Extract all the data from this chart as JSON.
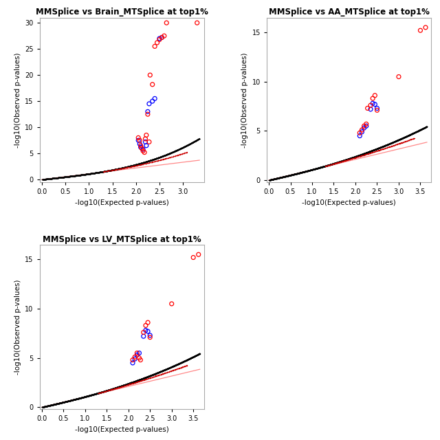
{
  "plots": [
    {
      "title": "MMSplice vs Brain_MTSplice at top1%",
      "xlim": [
        -0.05,
        3.45
      ],
      "ylim": [
        -0.5,
        31
      ],
      "xticks": [
        0.0,
        0.5,
        1.0,
        1.5,
        2.0,
        2.5,
        3.0
      ],
      "yticks": [
        0,
        5,
        10,
        15,
        20,
        25,
        30
      ],
      "curve_xmax": 3.35,
      "curve_ymax": 18.5,
      "curve_power": 3.2,
      "curve_scale": 4.5,
      "n_main": 8000,
      "diag_x0": 0.0,
      "diag_x1": 3.35,
      "diag_y0": 0.0,
      "diag_y1": 3.7,
      "red_circles": [
        [
          2.05,
          8.0
        ],
        [
          2.08,
          7.5
        ],
        [
          2.1,
          6.5
        ],
        [
          2.12,
          6.0
        ],
        [
          2.15,
          5.5
        ],
        [
          2.18,
          5.2
        ],
        [
          2.2,
          7.8
        ],
        [
          2.22,
          8.5
        ],
        [
          2.25,
          12.5
        ],
        [
          2.28,
          7.2
        ],
        [
          2.3,
          20.0
        ],
        [
          2.35,
          18.2
        ],
        [
          2.4,
          25.5
        ],
        [
          2.45,
          26.2
        ],
        [
          2.5,
          26.8
        ],
        [
          2.55,
          27.2
        ],
        [
          2.6,
          27.5
        ],
        [
          2.65,
          30.0
        ],
        [
          3.3,
          30.0
        ]
      ],
      "blue_circles": [
        [
          2.05,
          7.5
        ],
        [
          2.08,
          6.8
        ],
        [
          2.1,
          6.2
        ],
        [
          2.15,
          5.8
        ],
        [
          2.2,
          7.2
        ],
        [
          2.22,
          6.5
        ],
        [
          2.25,
          13.0
        ],
        [
          2.28,
          14.5
        ],
        [
          2.35,
          15.0
        ],
        [
          2.4,
          15.5
        ],
        [
          2.5,
          27.0
        ],
        [
          2.55,
          27.2
        ]
      ]
    },
    {
      "title": "MMSplice vs AA_MTSplice at top1%",
      "xlim": [
        -0.05,
        3.75
      ],
      "ylim": [
        -0.2,
        16.5
      ],
      "xticks": [
        0.0,
        0.5,
        1.0,
        1.5,
        2.0,
        2.5,
        3.0,
        3.5
      ],
      "yticks": [
        0,
        5,
        10,
        15
      ],
      "curve_xmax": 3.65,
      "curve_ymax": 14.5,
      "curve_power": 2.5,
      "curve_scale": 1.8,
      "n_main": 10000,
      "diag_x0": 0.0,
      "diag_x1": 3.65,
      "diag_y0": 0.0,
      "diag_y1": 3.85,
      "red_circles": [
        [
          2.1,
          4.8
        ],
        [
          2.15,
          5.1
        ],
        [
          2.2,
          5.5
        ],
        [
          2.25,
          5.7
        ],
        [
          2.28,
          7.3
        ],
        [
          2.35,
          7.6
        ],
        [
          2.4,
          8.3
        ],
        [
          2.45,
          8.6
        ],
        [
          2.5,
          7.1
        ],
        [
          3.0,
          10.5
        ],
        [
          3.5,
          15.2
        ],
        [
          3.62,
          15.5
        ]
      ],
      "blue_circles": [
        [
          2.1,
          4.5
        ],
        [
          2.15,
          4.9
        ],
        [
          2.2,
          5.3
        ],
        [
          2.25,
          5.5
        ],
        [
          2.35,
          7.2
        ],
        [
          2.4,
          7.8
        ],
        [
          2.45,
          7.7
        ],
        [
          2.5,
          7.3
        ]
      ]
    },
    {
      "title": "MMSplice vs LV_MTSplice at top1%",
      "xlim": [
        -0.05,
        3.75
      ],
      "ylim": [
        -0.2,
        16.5
      ],
      "xticks": [
        0.0,
        0.5,
        1.0,
        1.5,
        2.0,
        2.5,
        3.0,
        3.5
      ],
      "yticks": [
        0,
        5,
        10,
        15
      ],
      "curve_xmax": 3.65,
      "curve_ymax": 14.5,
      "curve_power": 2.5,
      "curve_scale": 1.8,
      "n_main": 10000,
      "diag_x0": 0.0,
      "diag_x1": 3.65,
      "diag_y0": 0.0,
      "diag_y1": 3.85,
      "red_circles": [
        [
          2.1,
          4.8
        ],
        [
          2.15,
          5.1
        ],
        [
          2.2,
          5.5
        ],
        [
          2.25,
          5.0
        ],
        [
          2.28,
          4.8
        ],
        [
          2.35,
          7.6
        ],
        [
          2.4,
          8.3
        ],
        [
          2.45,
          8.6
        ],
        [
          2.5,
          7.1
        ],
        [
          3.0,
          10.5
        ],
        [
          3.5,
          15.2
        ],
        [
          3.62,
          15.5
        ]
      ],
      "blue_circles": [
        [
          2.1,
          4.5
        ],
        [
          2.15,
          4.9
        ],
        [
          2.2,
          5.3
        ],
        [
          2.25,
          5.5
        ],
        [
          2.35,
          7.2
        ],
        [
          2.4,
          7.8
        ],
        [
          2.45,
          7.7
        ],
        [
          2.5,
          7.3
        ]
      ]
    }
  ],
  "xlabel": "-log10(Expected p-values)",
  "ylabel": "-log10(Observed p-values)",
  "bg_color": "#ffffff",
  "panel_bg": "#ffffff",
  "black_dot_color": "#000000",
  "red_circle_color": "#ff0000",
  "blue_circle_color": "#0000ff",
  "diag_line_color": "#ff8888",
  "dot_size": 0.8,
  "circle_size": 18,
  "circle_lw": 0.9
}
